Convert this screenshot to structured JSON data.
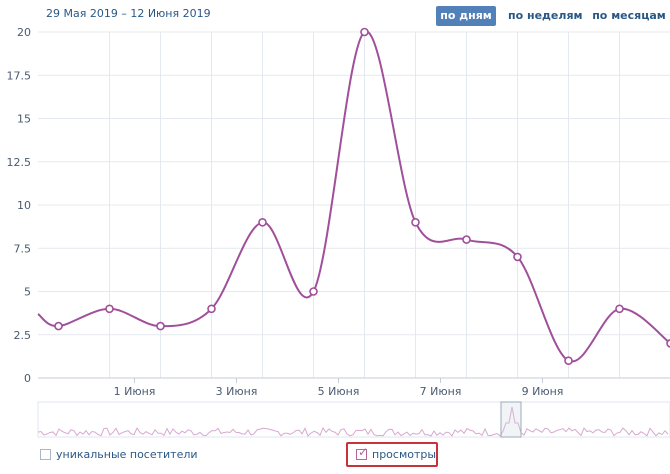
{
  "header": {
    "date_range": "29 Мая 2019 – 12 Июня 2019",
    "tabs": [
      {
        "label": "по дням",
        "active": true
      },
      {
        "label": "по неделям",
        "active": false
      },
      {
        "label": "по месяцам",
        "active": false
      }
    ]
  },
  "legend": {
    "unique_visitors": {
      "label": "уникальные посетители",
      "checked": false
    },
    "views": {
      "label": "просмотры",
      "checked": true
    }
  },
  "colors": {
    "series": "#a0509a",
    "grid": "#e4e9ef",
    "accent": "#5181b8",
    "highlight": "#c7323c"
  },
  "chart_data": {
    "type": "line",
    "title": "",
    "xlabel": "",
    "ylabel": "",
    "ylim": [
      0,
      20
    ],
    "yticks": [
      "0",
      "2.5",
      "5",
      "7.5",
      "10",
      "12.5",
      "15",
      "17.5",
      "20"
    ],
    "xtick_labels": [
      "1 Июня",
      "3 Июня",
      "5 Июня",
      "7 Июня",
      "9 Июня"
    ],
    "grid": true,
    "series": [
      {
        "name": "просмотры",
        "points": [
          {
            "x": "30 Мая",
            "y": 3
          },
          {
            "x": "31 Мая",
            "y": 4
          },
          {
            "x": "1 Июня",
            "y": 3
          },
          {
            "x": "2 Июня",
            "y": 4
          },
          {
            "x": "3 Июня",
            "y": 9
          },
          {
            "x": "4 Июня",
            "y": 5
          },
          {
            "x": "5 Июня",
            "y": 20
          },
          {
            "x": "6 Июня",
            "y": 9
          },
          {
            "x": "7 Июня",
            "y": 8
          },
          {
            "x": "8 Июня",
            "y": 7
          },
          {
            "x": "9 Июня",
            "y": 1
          },
          {
            "x": "10 Июня",
            "y": 4
          },
          {
            "x": "11 Июня",
            "y": 2
          }
        ]
      }
    ]
  }
}
